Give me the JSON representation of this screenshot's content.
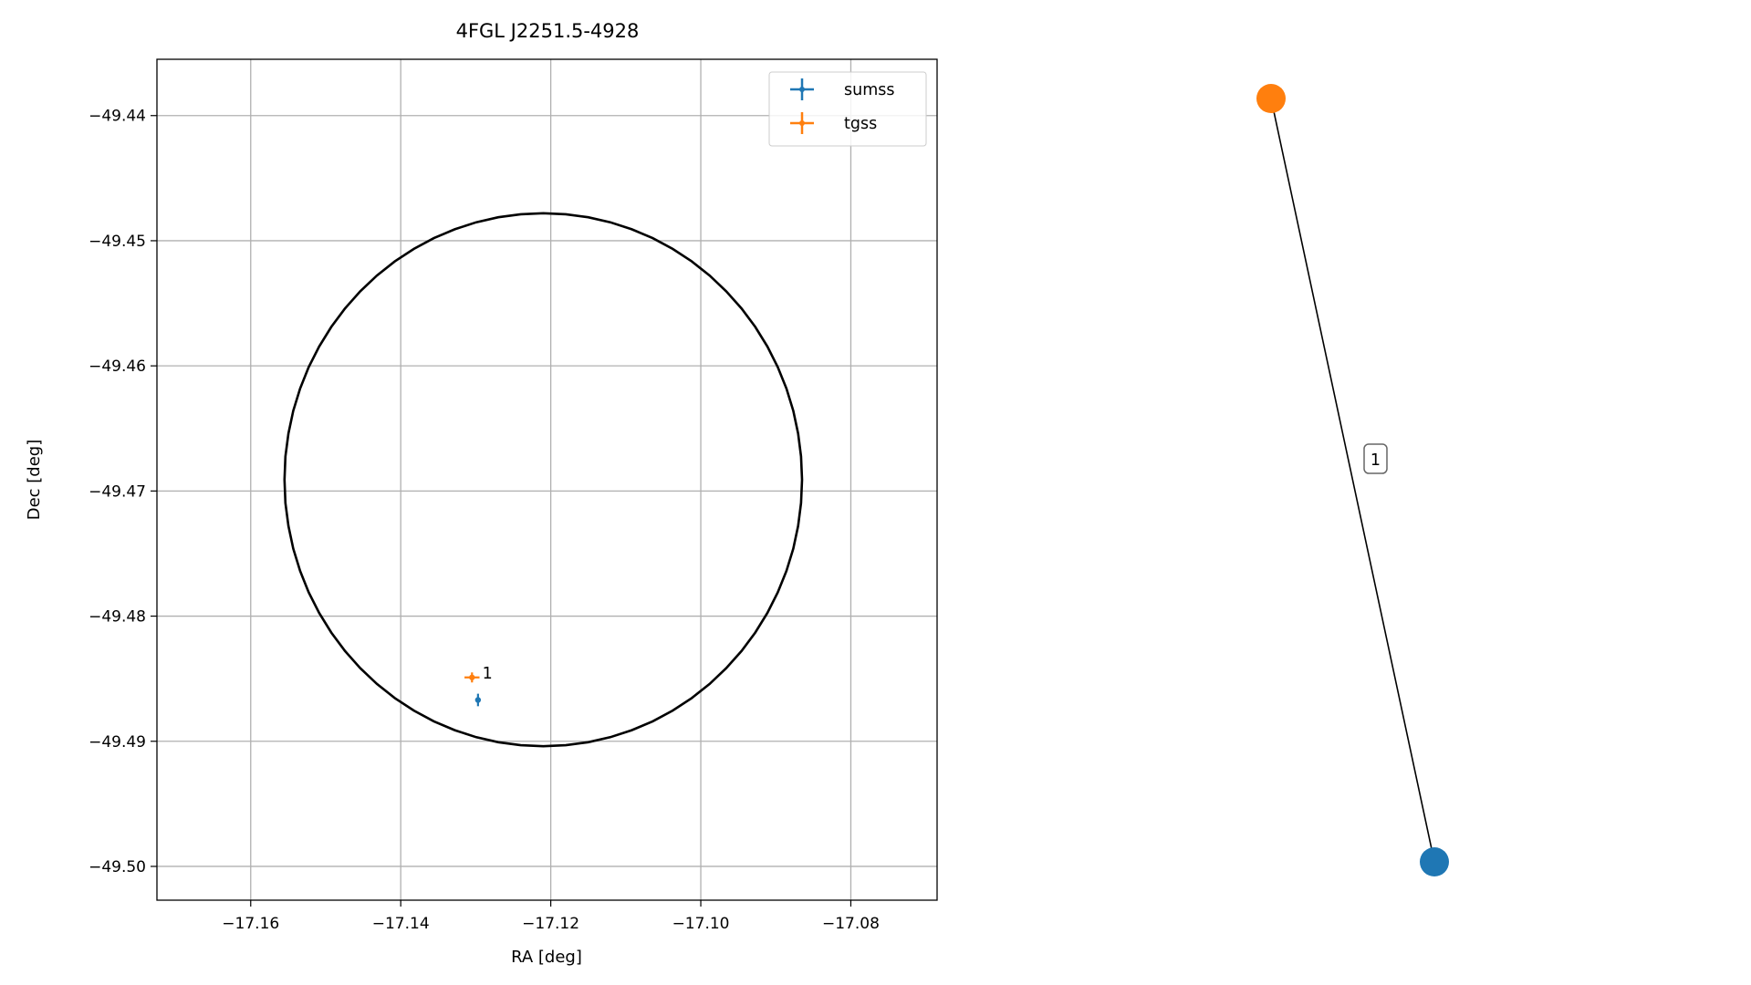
{
  "chart_data": [
    {
      "type": "scatter",
      "title": "4FGL J2251.5-4928",
      "xlabel": "RA [deg]",
      "ylabel": "Dec [deg]",
      "xlim": [
        -17.1725,
        -17.0685
      ],
      "ylim": [
        -49.5027,
        -49.4355
      ],
      "xticks": [
        -17.16,
        -17.14,
        -17.12,
        -17.1,
        -17.08
      ],
      "xtick_labels": [
        "−17.16",
        "−17.14",
        "−17.12",
        "−17.10",
        "−17.08"
      ],
      "yticks": [
        -49.44,
        -49.45,
        -49.46,
        -49.47,
        -49.48,
        -49.49,
        -49.5
      ],
      "ytick_labels": [
        "−49.44",
        "−49.45",
        "−49.46",
        "−49.47",
        "−49.48",
        "−49.49",
        "−49.50"
      ],
      "grid": true,
      "legend_position": "top-right",
      "ellipse": {
        "center": [
          -17.121,
          -49.4691
        ],
        "ra_semi_axis": 0.0345,
        "dec_semi_axis": 0.0213,
        "color": "#000000"
      },
      "series": [
        {
          "name": "sumss",
          "color": "#1f77b4",
          "x": [
            -17.1297
          ],
          "y": [
            -49.4867
          ],
          "x_err": [
            0.0003
          ],
          "y_err": [
            0.0005
          ]
        },
        {
          "name": "tgss",
          "color": "#ff7f0e",
          "x": [
            -17.1305
          ],
          "y": [
            -49.4849
          ],
          "x_err": [
            0.001
          ],
          "y_err": [
            0.0004
          ]
        }
      ],
      "annotations": [
        {
          "text": "1",
          "x": -17.129,
          "y": -49.4849
        }
      ]
    },
    {
      "type": "graph",
      "nodes": [
        {
          "id": "tgss",
          "color": "#ff7f0e"
        },
        {
          "id": "sumss",
          "color": "#1f77b4"
        }
      ],
      "edges": [
        {
          "source": "tgss",
          "target": "sumss",
          "label": "1"
        }
      ]
    }
  ]
}
